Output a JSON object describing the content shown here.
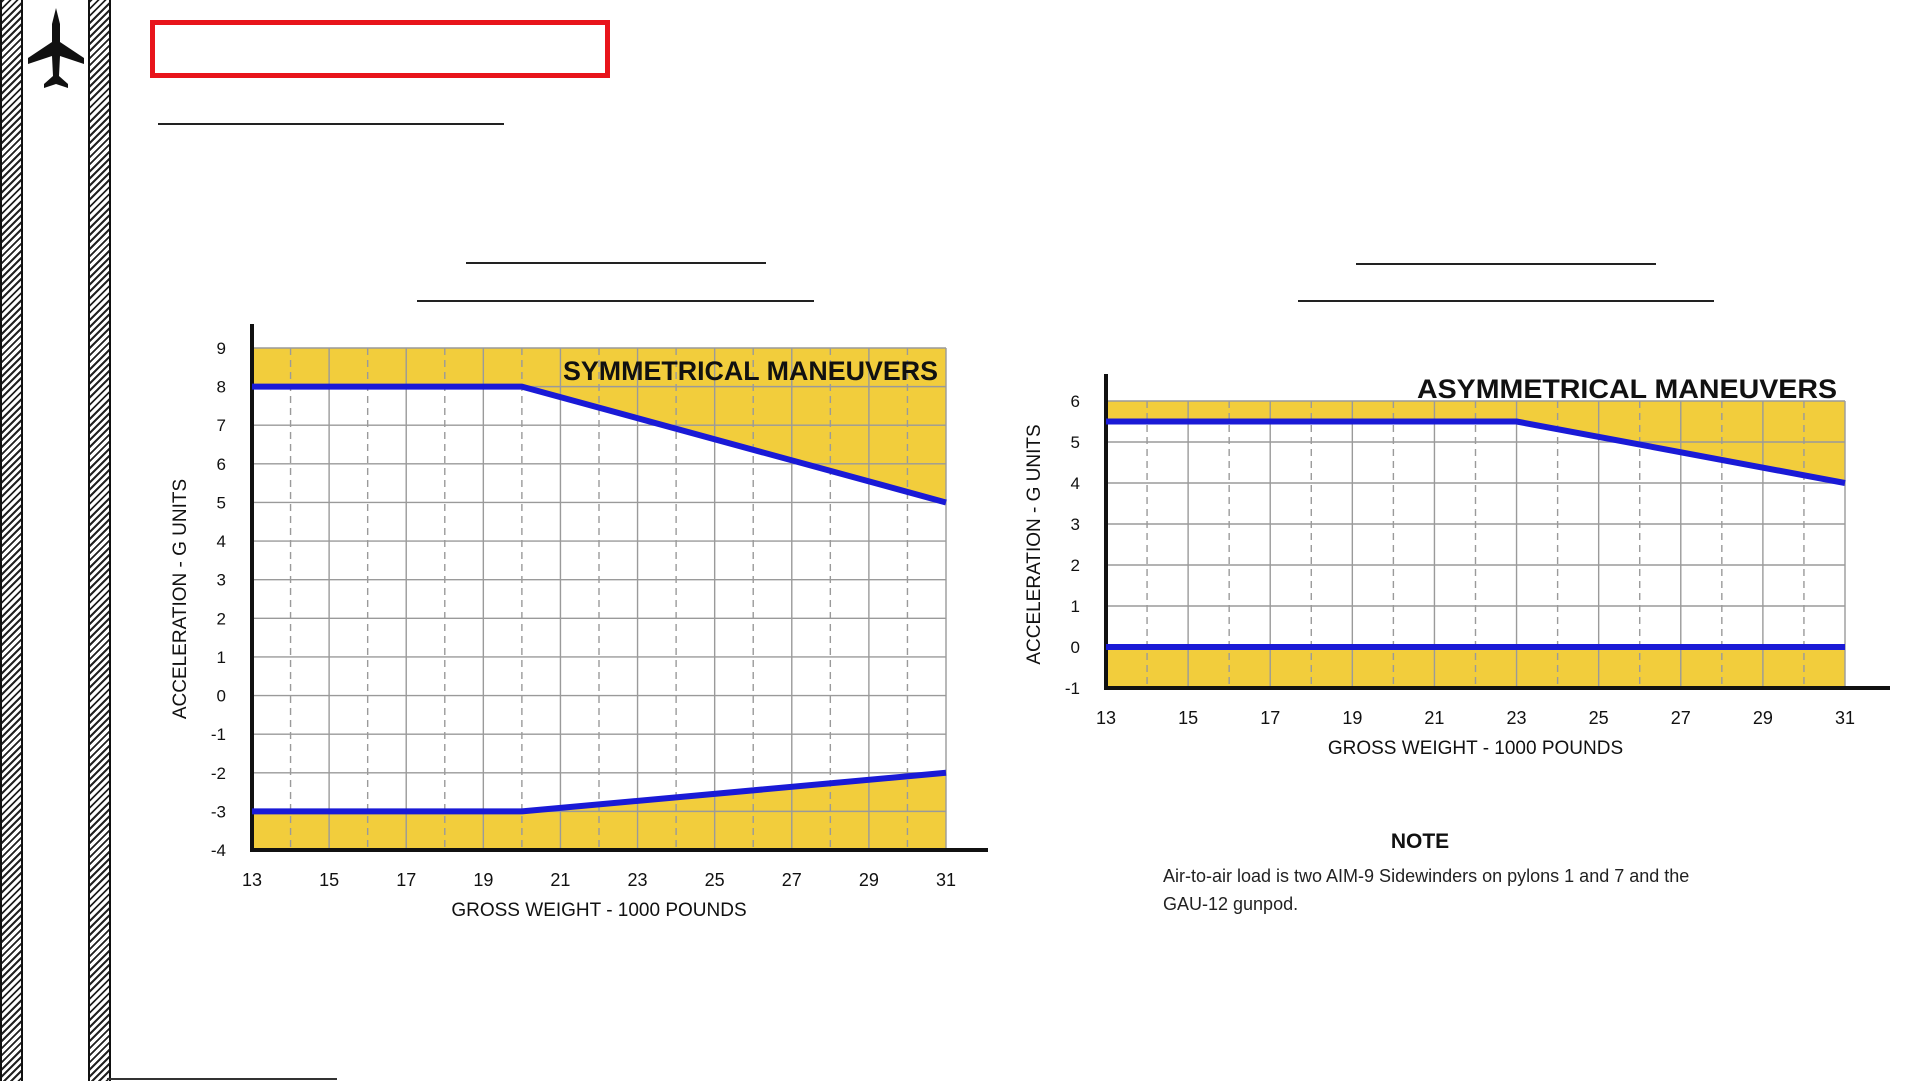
{
  "note": {
    "heading": "NOTE",
    "text": "Air-to-air load is two AIM-9 Sidewinders on pylons 1 and 7 and the GAU-12 gunpod."
  },
  "icons": {
    "aircraft": "aircraft-icon"
  },
  "colors": {
    "highlight_box": "#e8141b",
    "limit_line": "#1a1ad6",
    "restricted_fill": "#f2cd3c",
    "grid": "#9a9a9a"
  },
  "chart_data": [
    {
      "type": "line",
      "title": "SYMMETRICAL MANEUVERS",
      "xlabel": "GROSS WEIGHT - 1000 POUNDS",
      "ylabel": "ACCELERATION - G UNITS",
      "xlim": [
        13,
        31
      ],
      "ylim": [
        -4,
        9
      ],
      "xticks": [
        13,
        15,
        17,
        19,
        21,
        23,
        25,
        27,
        29,
        31
      ],
      "yticks": [
        9,
        8,
        7,
        6,
        5,
        4,
        3,
        2,
        1,
        0,
        -1,
        -2,
        -3,
        -4
      ],
      "grid": true,
      "series": [
        {
          "x": [
            13,
            20,
            31
          ],
          "y": [
            8,
            8,
            5
          ]
        },
        {
          "x": [
            13,
            20,
            31
          ],
          "y": [
            -3,
            -3,
            -2
          ]
        }
      ]
    },
    {
      "type": "line",
      "title": "ASYMMETRICAL MANEUVERS",
      "xlabel": "GROSS WEIGHT - 1000 POUNDS",
      "ylabel": "ACCELERATION - G UNITS",
      "xlim": [
        13,
        31
      ],
      "ylim": [
        -1,
        6
      ],
      "xticks": [
        13,
        15,
        17,
        19,
        21,
        23,
        25,
        27,
        29,
        31
      ],
      "yticks": [
        6,
        5,
        4,
        3,
        2,
        1,
        0,
        -1
      ],
      "grid": true,
      "series": [
        {
          "x": [
            13,
            23,
            31
          ],
          "y": [
            5.5,
            5.5,
            4
          ]
        },
        {
          "x": [
            13,
            31
          ],
          "y": [
            0,
            0
          ]
        }
      ]
    }
  ]
}
